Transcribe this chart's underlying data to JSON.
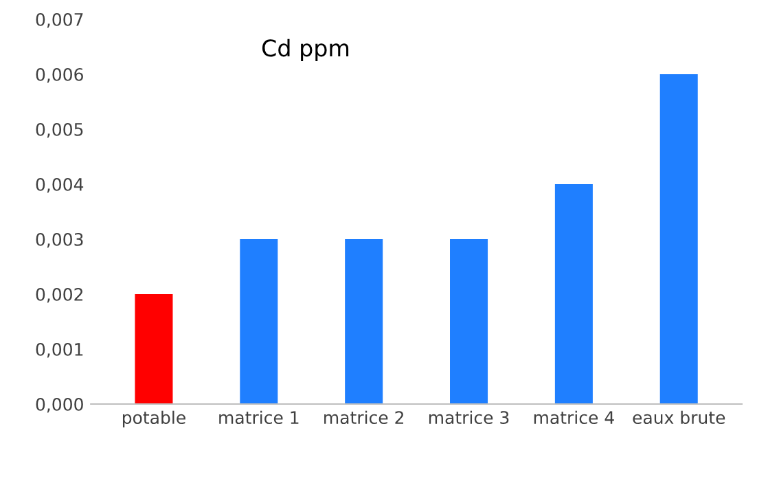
{
  "chart_data": {
    "type": "bar",
    "title": "Cd ppm",
    "categories": [
      "potable",
      "matrice 1",
      "matrice 2",
      "matrice 3",
      "matrice 4",
      "eaux brute"
    ],
    "values": [
      0.002,
      0.003,
      0.003,
      0.003,
      0.004,
      0.006
    ],
    "colors": [
      "#ff0000",
      "#1f7fff",
      "#1f7fff",
      "#1f7fff",
      "#1f7fff",
      "#1f7fff"
    ],
    "ylim": [
      0,
      0.007
    ],
    "yticks": [
      {
        "value": 0,
        "label": "0,000"
      },
      {
        "value": 0.001,
        "label": "0,001"
      },
      {
        "value": 0.002,
        "label": "0,002"
      },
      {
        "value": 0.003,
        "label": "0,003"
      },
      {
        "value": 0.004,
        "label": "0,004"
      },
      {
        "value": 0.005,
        "label": "0,005"
      },
      {
        "value": 0.006,
        "label": "0,006"
      },
      {
        "value": 0.007,
        "label": "0,007"
      }
    ],
    "grid": false
  }
}
